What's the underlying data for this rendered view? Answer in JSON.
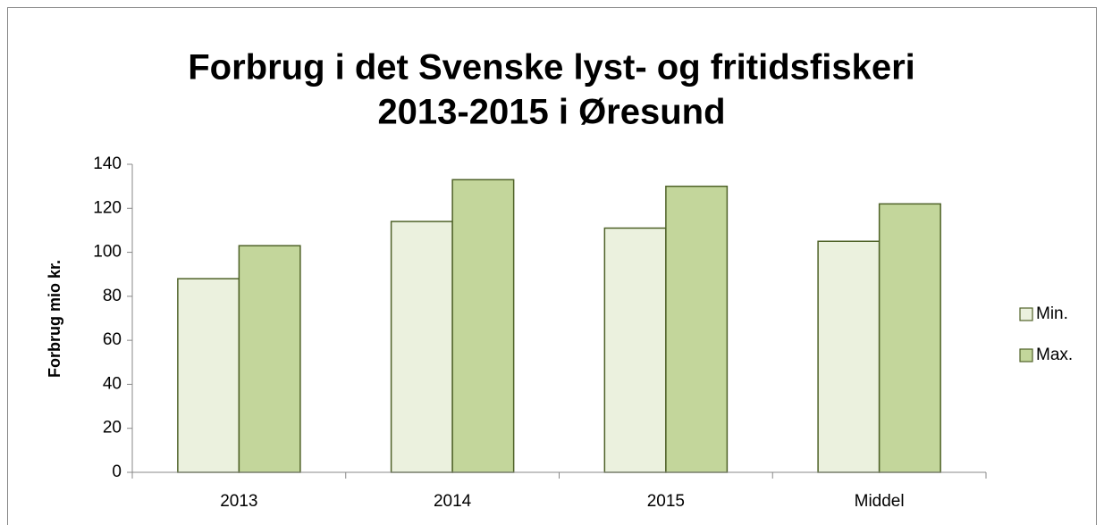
{
  "chart_data": {
    "type": "bar",
    "title": [
      "Forbrug i det Svenske lyst- og fritidsfiskeri",
      "2013-2015 i Øresund"
    ],
    "y_label": "Forbrug mio kr.",
    "categories": [
      "2013",
      "2014",
      "2015",
      "Middel"
    ],
    "series": [
      {
        "name": "Min.",
        "color": "#ebf1de",
        "values": [
          88,
          114,
          111,
          105
        ]
      },
      {
        "name": "Max.",
        "color": "#c3d69b",
        "values": [
          103,
          133,
          130,
          122
        ]
      }
    ],
    "ylim": [
      0,
      140
    ],
    "yticks": [
      0,
      20,
      40,
      60,
      80,
      100,
      120,
      140
    ],
    "grid": false,
    "legend": "right"
  }
}
